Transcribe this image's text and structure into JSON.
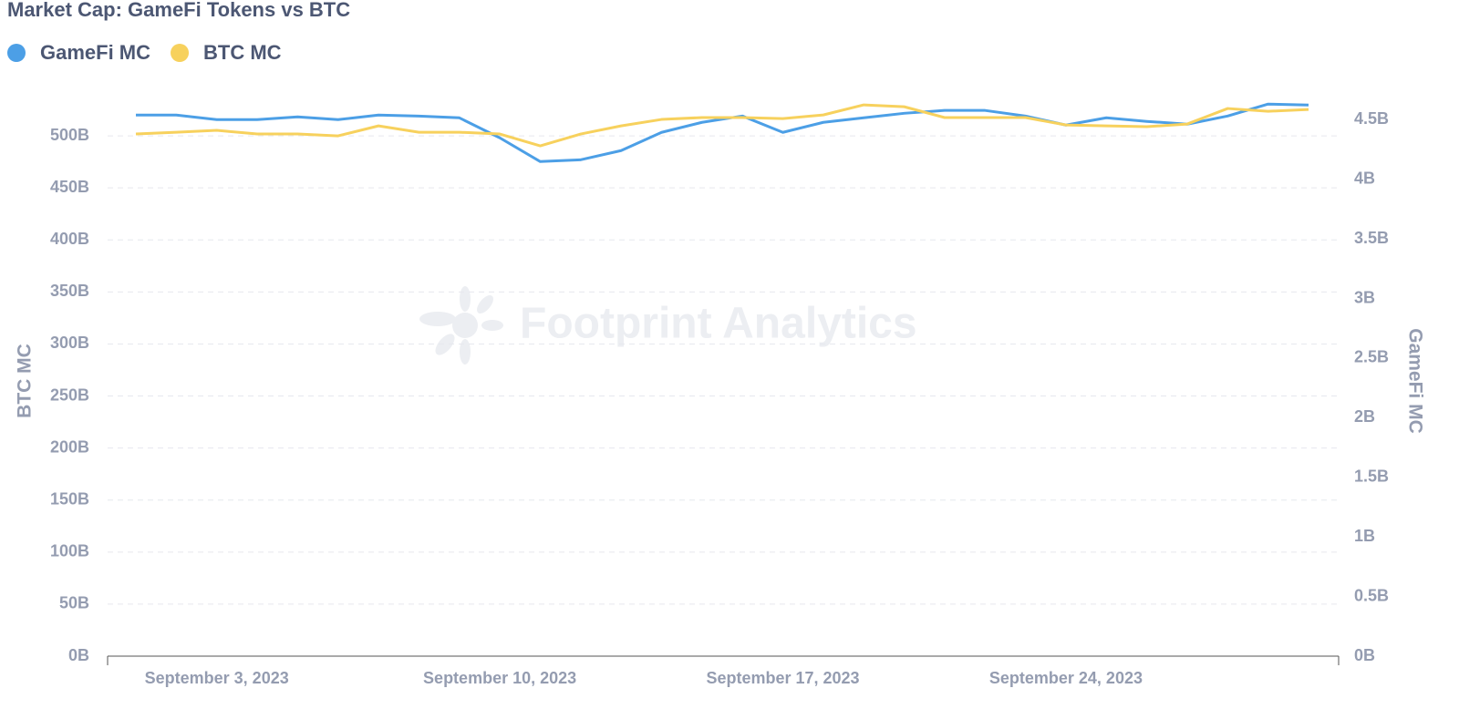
{
  "chart_data": {
    "type": "line",
    "title": "Market Cap: GameFi Tokens vs BTC",
    "watermark": "Footprint Analytics",
    "y_label": "BTC MC",
    "y2_label": "GameFi MC",
    "x": [
      "2023-09-01",
      "2023-09-02",
      "2023-09-03",
      "2023-09-04",
      "2023-09-05",
      "2023-09-06",
      "2023-09-07",
      "2023-09-08",
      "2023-09-09",
      "2023-09-10",
      "2023-09-11",
      "2023-09-12",
      "2023-09-13",
      "2023-09-14",
      "2023-09-15",
      "2023-09-16",
      "2023-09-17",
      "2023-09-18",
      "2023-09-19",
      "2023-09-20",
      "2023-09-21",
      "2023-09-22",
      "2023-09-23",
      "2023-09-24",
      "2023-09-25",
      "2023-09-26",
      "2023-09-27",
      "2023-09-28",
      "2023-09-29",
      "2023-09-30"
    ],
    "xticks": [
      {
        "value": "2023-09-03",
        "label": "September 3, 2023"
      },
      {
        "value": "2023-09-10",
        "label": "September 10, 2023"
      },
      {
        "value": "2023-09-17",
        "label": "September 17, 2023"
      },
      {
        "value": "2023-09-24",
        "label": "September 24, 2023"
      }
    ],
    "series": [
      {
        "name": "GameFi MC",
        "color": "#4c9fe6",
        "axis": "y2",
        "values": [
          4.538,
          4.538,
          4.5,
          4.5,
          4.523,
          4.5,
          4.538,
          4.53,
          4.515,
          4.347,
          4.148,
          4.163,
          4.24,
          4.393,
          4.477,
          4.53,
          4.393,
          4.477,
          4.515,
          4.553,
          4.577,
          4.577,
          4.53,
          4.454,
          4.515,
          4.485,
          4.462,
          4.53,
          4.63,
          4.622
        ]
      },
      {
        "name": "BTC MC",
        "color": "#f7d15d",
        "values": [
          501.8,
          503.5,
          505.3,
          501.8,
          501.8,
          500.0,
          509.6,
          503.5,
          503.5,
          501.8,
          490.4,
          501.8,
          509.6,
          515.8,
          517.6,
          517.6,
          516.6,
          520.1,
          529.8,
          528.0,
          517.6,
          517.6,
          517.6,
          510.5,
          509.6,
          508.8,
          511.4,
          526.3,
          523.6,
          525.4
        ]
      }
    ],
    "ylim": [
      0,
      550
    ],
    "yticks": [
      {
        "value": 0,
        "label": "0B"
      },
      {
        "value": 50,
        "label": "50B"
      },
      {
        "value": 100,
        "label": "100B"
      },
      {
        "value": 150,
        "label": "150B"
      },
      {
        "value": 200,
        "label": "200B"
      },
      {
        "value": 250,
        "label": "250B"
      },
      {
        "value": 300,
        "label": "300B"
      },
      {
        "value": 350,
        "label": "350B"
      },
      {
        "value": 400,
        "label": "400B"
      },
      {
        "value": 450,
        "label": "450B"
      },
      {
        "value": 500,
        "label": "500B"
      }
    ],
    "y2lim": [
      0,
      4.8
    ],
    "y2ticks": [
      {
        "value": 0,
        "label": "0B"
      },
      {
        "value": 0.5,
        "label": "0.5B"
      },
      {
        "value": 1,
        "label": "1B"
      },
      {
        "value": 1.5,
        "label": "1.5B"
      },
      {
        "value": 2,
        "label": "2B"
      },
      {
        "value": 2.5,
        "label": "2.5B"
      },
      {
        "value": 3,
        "label": "3B"
      },
      {
        "value": 3.5,
        "label": "3.5B"
      },
      {
        "value": 4,
        "label": "4B"
      },
      {
        "value": 4.5,
        "label": "4.5B"
      }
    ],
    "grid": true
  }
}
